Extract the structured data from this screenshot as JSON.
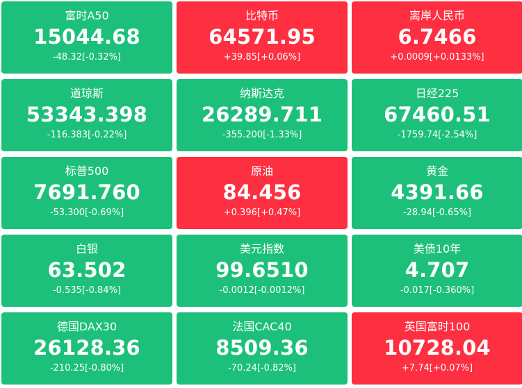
{
  "colors": {
    "up": "#fd2f41",
    "down": "#1dc07b",
    "text": "#ffffff"
  },
  "tiles": [
    {
      "name": "富时A50",
      "price": "15044.68",
      "change": "-48.32[-0.32%]",
      "trend": "down"
    },
    {
      "name": "比特币",
      "price": "64571.95",
      "change": "+39.85[+0.06%]",
      "trend": "up"
    },
    {
      "name": "离岸人民币",
      "price": "6.7466",
      "change": "+0.0009[+0.0133%]",
      "trend": "up"
    },
    {
      "name": "道琼斯",
      "price": "53343.398",
      "change": "-116.383[-0.22%]",
      "trend": "down"
    },
    {
      "name": "纳斯达克",
      "price": "26289.711",
      "change": "-355.200[-1.33%]",
      "trend": "down"
    },
    {
      "name": "日经225",
      "price": "67460.51",
      "change": "-1759.74[-2.54%]",
      "trend": "down"
    },
    {
      "name": "标普500",
      "price": "7691.760",
      "change": "-53.300[-0.69%]",
      "trend": "down"
    },
    {
      "name": "原油",
      "price": "84.456",
      "change": "+0.396[+0.47%]",
      "trend": "up"
    },
    {
      "name": "黄金",
      "price": "4391.66",
      "change": "-28.94[-0.65%]",
      "trend": "down"
    },
    {
      "name": "白银",
      "price": "63.502",
      "change": "-0.535[-0.84%]",
      "trend": "down"
    },
    {
      "name": "美元指数",
      "price": "99.6510",
      "change": "-0.0012[-0.0012%]",
      "trend": "down"
    },
    {
      "name": "美债10年",
      "price": "4.707",
      "change": "-0.017[-0.360%]",
      "trend": "down"
    },
    {
      "name": "德国DAX30",
      "price": "26128.36",
      "change": "-210.25[-0.80%]",
      "trend": "down"
    },
    {
      "name": "法国CAC40",
      "price": "8509.36",
      "change": "-70.24[-0.82%]",
      "trend": "down"
    },
    {
      "name": "英国富时100",
      "price": "10728.04",
      "change": "+7.74[+0.07%]",
      "trend": "up"
    }
  ]
}
